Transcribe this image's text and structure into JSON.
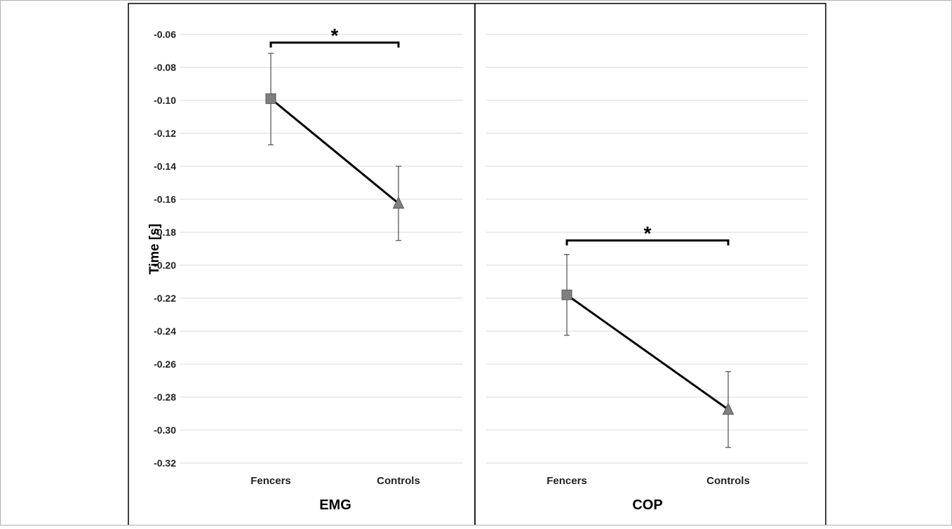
{
  "chart_data": [
    {
      "type": "line",
      "title": "EMG",
      "ylabel": "Time [s]",
      "xlabel": "",
      "categories": [
        "Fencers",
        "Controls"
      ],
      "ylim": [
        -0.32,
        -0.06
      ],
      "y_ticks": [
        "-0.06",
        "-0.08",
        "-0.10",
        "-0.12",
        "-0.14",
        "-0.16",
        "-0.18",
        "-0.20",
        "-0.22",
        "-0.24",
        "-0.26",
        "-0.28",
        "-0.30",
        "-0.32"
      ],
      "series": [
        {
          "values": [
            -0.099,
            -0.1625
          ],
          "error_low": [
            -0.127,
            -0.185
          ],
          "error_high": [
            -0.0715,
            -0.14
          ],
          "markers": [
            "square",
            "triangle"
          ]
        }
      ],
      "significance": {
        "from": "Fencers",
        "to": "Controls",
        "label": "*",
        "y": -0.065
      },
      "grid": true
    },
    {
      "type": "line",
      "title": "COP",
      "ylabel": "",
      "xlabel": "",
      "categories": [
        "Fencers",
        "Controls"
      ],
      "ylim": [
        -0.32,
        -0.06
      ],
      "series": [
        {
          "values": [
            -0.218,
            -0.2875
          ],
          "error_low": [
            -0.2425,
            -0.3105
          ],
          "error_high": [
            -0.1935,
            -0.2645
          ],
          "markers": [
            "square",
            "triangle"
          ]
        }
      ],
      "significance": {
        "from": "Fencers",
        "to": "Controls",
        "label": "*",
        "y": -0.185
      },
      "grid": true
    }
  ],
  "colors": {
    "line": "#000000",
    "marker_fill": "#7f7f7f",
    "marker_stroke": "#595959",
    "grid": "#d9d9d9",
    "error_bar": "#595959"
  }
}
